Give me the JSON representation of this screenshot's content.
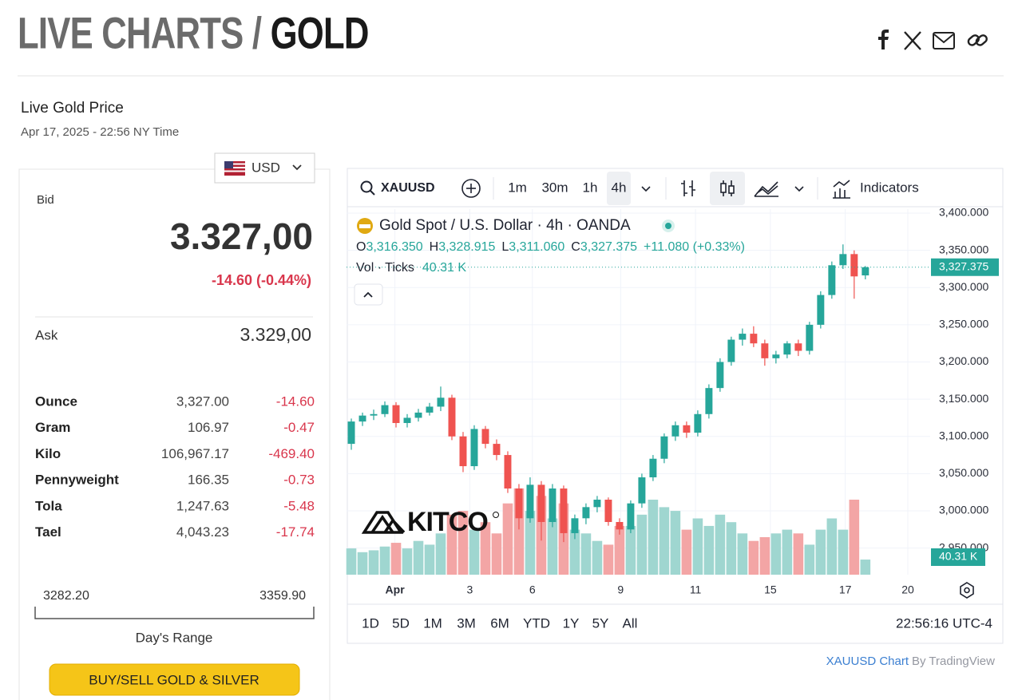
{
  "header": {
    "title_part1": "LIVE CHARTS / ",
    "title_part2": "GOLD"
  },
  "panel": {
    "title": "Live Gold Price",
    "timestamp": "Apr 17, 2025 - 22:56 NY Time",
    "currency": "USD",
    "bid_label": "Bid",
    "bid": "3.327,00",
    "bid_change": "-14.60 (-0.44%)",
    "ask_label": "Ask",
    "ask": "3.329,00",
    "rows": [
      [
        "Ounce",
        "3,327.00",
        "-14.60"
      ],
      [
        "Gram",
        "106.97",
        "-0.47"
      ],
      [
        "Kilo",
        "106,967.17",
        "-469.40"
      ],
      [
        "Pennyweight",
        "166.35",
        "-0.73"
      ],
      [
        "Tola",
        "1,247.63",
        "-5.48"
      ],
      [
        "Tael",
        "4,043.23",
        "-17.74"
      ]
    ],
    "range_low": "3282.20",
    "range_high": "3359.90",
    "range_label": "Day's Range",
    "button": "BUY/SELL GOLD & SILVER"
  },
  "toolbar": {
    "symbol": "XAUUSD",
    "intervals": [
      "1m",
      "30m",
      "1h",
      "4h"
    ],
    "indicators": "Indicators"
  },
  "chart": {
    "type": "candlestick",
    "title": "Gold Spot / U.S. Dollar · 4h · OANDA",
    "ohlc_labels": [
      "O",
      "H",
      "L",
      "C"
    ],
    "ohlc_values": [
      "3,316.350",
      "3,328.915",
      "3,311.060",
      "3,327.375"
    ],
    "change": "+11.080 (+0.33%)",
    "volume_title": "Vol · Ticks",
    "volume_last": "40.31 K",
    "last_price": "3,327.375",
    "watermark": "KITCO",
    "up_color": "#26a69a",
    "down_color": "#ef5350",
    "up_volume_color": "#9fd6d0",
    "down_volume_color": "#f3a5a5",
    "ylim": [
      2914.2,
      3405.4
    ],
    "yticks": [
      {
        "value": 2950,
        "label": "2,950.000"
      },
      {
        "value": 3000,
        "label": "3,000.000"
      },
      {
        "value": 3050,
        "label": "3,050.000"
      },
      {
        "value": 3100,
        "label": "3,100.000"
      },
      {
        "value": 3150,
        "label": "3,150.000"
      },
      {
        "value": 3200,
        "label": "3,200.000"
      },
      {
        "value": 3250,
        "label": "3,250.000"
      },
      {
        "value": 3300,
        "label": "3,300.000"
      },
      {
        "value": 3350,
        "label": "3,350.000"
      },
      {
        "value": 3400,
        "label": "3,400.000"
      }
    ],
    "xlim": [
      -0.43,
      51.8
    ],
    "xticks": [
      {
        "value": 3.9,
        "label": "Apr"
      },
      {
        "value": 10.6,
        "label": "3"
      },
      {
        "value": 16.2,
        "label": "6"
      },
      {
        "value": 24.1,
        "label": "9"
      },
      {
        "value": 30.8,
        "label": "11"
      },
      {
        "value": 37.5,
        "label": "15"
      },
      {
        "value": 44.2,
        "label": "17"
      },
      {
        "value": 49.8,
        "label": "20"
      }
    ],
    "candles": [
      {
        "o": 3090,
        "h": 3124,
        "l": 3082,
        "c": 3120
      },
      {
        "o": 3120,
        "h": 3132,
        "l": 3114,
        "c": 3128
      },
      {
        "o": 3128,
        "h": 3136,
        "l": 3122,
        "c": 3130
      },
      {
        "o": 3130,
        "h": 3147,
        "l": 3126,
        "c": 3142
      },
      {
        "o": 3142,
        "h": 3146,
        "l": 3112,
        "c": 3118
      },
      {
        "o": 3118,
        "h": 3130,
        "l": 3112,
        "c": 3125
      },
      {
        "o": 3125,
        "h": 3137,
        "l": 3120,
        "c": 3132
      },
      {
        "o": 3132,
        "h": 3145,
        "l": 3128,
        "c": 3140
      },
      {
        "o": 3140,
        "h": 3167,
        "l": 3134,
        "c": 3152
      },
      {
        "o": 3152,
        "h": 3156,
        "l": 3095,
        "c": 3100
      },
      {
        "o": 3100,
        "h": 3106,
        "l": 3052,
        "c": 3060
      },
      {
        "o": 3060,
        "h": 3115,
        "l": 3055,
        "c": 3110
      },
      {
        "o": 3110,
        "h": 3114,
        "l": 3084,
        "c": 3090
      },
      {
        "o": 3090,
        "h": 3096,
        "l": 3068,
        "c": 3075
      },
      {
        "o": 3075,
        "h": 3080,
        "l": 3024,
        "c": 3030
      },
      {
        "o": 3030,
        "h": 3036,
        "l": 2975,
        "c": 2990
      },
      {
        "o": 2990,
        "h": 3045,
        "l": 2984,
        "c": 3035
      },
      {
        "o": 3035,
        "h": 3040,
        "l": 2960,
        "c": 2985
      },
      {
        "o": 2985,
        "h": 3036,
        "l": 2978,
        "c": 3030
      },
      {
        "o": 3030,
        "h": 3034,
        "l": 2958,
        "c": 2970
      },
      {
        "o": 2970,
        "h": 2995,
        "l": 2962,
        "c": 2990
      },
      {
        "o": 2990,
        "h": 3010,
        "l": 2982,
        "c": 3005
      },
      {
        "o": 3005,
        "h": 3020,
        "l": 2998,
        "c": 3015
      },
      {
        "o": 3015,
        "h": 3018,
        "l": 2980,
        "c": 2985
      },
      {
        "o": 2985,
        "h": 2990,
        "l": 2968,
        "c": 2975
      },
      {
        "o": 2975,
        "h": 3014,
        "l": 2970,
        "c": 3010
      },
      {
        "o": 3010,
        "h": 3050,
        "l": 3004,
        "c": 3045
      },
      {
        "o": 3045,
        "h": 3075,
        "l": 3040,
        "c": 3070
      },
      {
        "o": 3070,
        "h": 3104,
        "l": 3064,
        "c": 3100
      },
      {
        "o": 3100,
        "h": 3120,
        "l": 3094,
        "c": 3115
      },
      {
        "o": 3115,
        "h": 3120,
        "l": 3098,
        "c": 3105
      },
      {
        "o": 3105,
        "h": 3135,
        "l": 3100,
        "c": 3130
      },
      {
        "o": 3130,
        "h": 3170,
        "l": 3124,
        "c": 3165
      },
      {
        "o": 3165,
        "h": 3205,
        "l": 3160,
        "c": 3200
      },
      {
        "o": 3200,
        "h": 3234,
        "l": 3195,
        "c": 3230
      },
      {
        "o": 3230,
        "h": 3245,
        "l": 3222,
        "c": 3238
      },
      {
        "o": 3238,
        "h": 3248,
        "l": 3220,
        "c": 3225
      },
      {
        "o": 3225,
        "h": 3230,
        "l": 3195,
        "c": 3205
      },
      {
        "o": 3205,
        "h": 3215,
        "l": 3198,
        "c": 3210
      },
      {
        "o": 3210,
        "h": 3228,
        "l": 3205,
        "c": 3225
      },
      {
        "o": 3225,
        "h": 3230,
        "l": 3208,
        "c": 3215
      },
      {
        "o": 3215,
        "h": 3254,
        "l": 3210,
        "c": 3250
      },
      {
        "o": 3250,
        "h": 3295,
        "l": 3245,
        "c": 3290
      },
      {
        "o": 3290,
        "h": 3335,
        "l": 3285,
        "c": 3330
      },
      {
        "o": 3330,
        "h": 3358,
        "l": 3325,
        "c": 3345
      },
      {
        "o": 3345,
        "h": 3350,
        "l": 3285,
        "c": 3315
      },
      {
        "o": 3316.35,
        "h": 3328.915,
        "l": 3311.06,
        "c": 3327.375
      }
    ],
    "volumes": [
      70,
      60,
      65,
      75,
      85,
      70,
      90,
      80,
      110,
      160,
      170,
      120,
      140,
      110,
      190,
      230,
      170,
      210,
      150,
      190,
      120,
      110,
      90,
      80,
      130,
      130,
      160,
      200,
      180,
      170,
      120,
      150,
      130,
      160,
      140,
      110,
      90,
      100,
      110,
      120,
      110,
      80,
      120,
      150,
      120,
      200,
      40.31
    ],
    "ranges": [
      "1D",
      "5D",
      "1M",
      "3M",
      "6M",
      "YTD",
      "1Y",
      "5Y",
      "All"
    ],
    "clock": "22:56:16 UTC-4"
  },
  "footer": {
    "link": "XAUUSD Chart",
    "by": "By TradingView"
  }
}
